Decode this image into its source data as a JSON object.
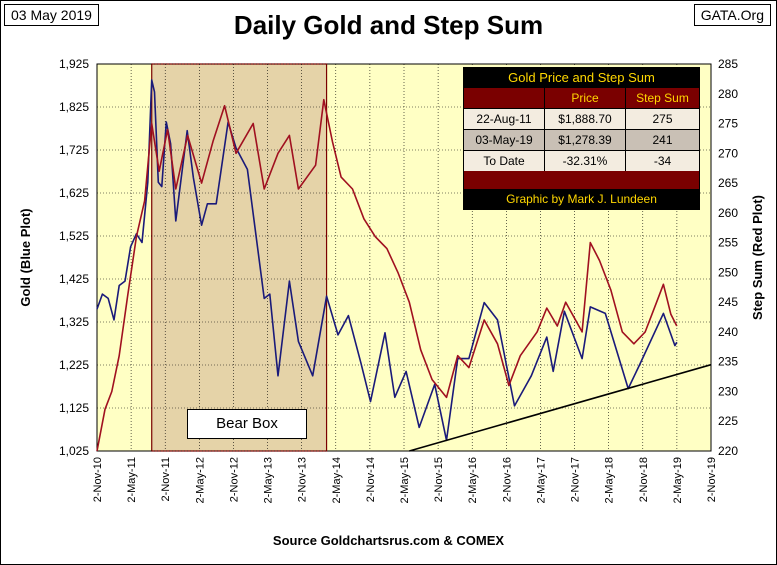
{
  "header": {
    "date": "03 May 2019",
    "title": "Daily Gold and Step Sum",
    "site": "GATA.Org"
  },
  "table": {
    "title": "Gold Price and Step Sum",
    "col_price": "Price",
    "col_step": "Step Sum",
    "rows": [
      {
        "label": "22-Aug-11",
        "price": "$1,888.70",
        "step": "275"
      },
      {
        "label": "03-May-19",
        "price": "$1,278.39",
        "step": "241"
      },
      {
        "label": "To Date",
        "price": "-32.31%",
        "step": "-34"
      }
    ],
    "credit": "Graphic by Mark J. Lundeen"
  },
  "bear_box_label": "Bear Box",
  "source": "Source Goldchartsrus.com & COMEX",
  "colors": {
    "plot_bg": "#ffffc4",
    "bear_box": "#e5d3a8",
    "gold_series": "#1a1a7a",
    "step_series": "#a01020",
    "grid": "#000000"
  },
  "chart_data": {
    "type": "line",
    "xlabel": "",
    "ylabel_left": "Gold   (Blue Plot)",
    "ylabel_right": "Step Sum   (Red Plot)",
    "x_ticks": [
      "2-Nov-10",
      "2-May-11",
      "2-Nov-11",
      "2-May-12",
      "2-Nov-12",
      "2-May-13",
      "2-Nov-13",
      "2-May-14",
      "2-Nov-14",
      "2-May-15",
      "2-Nov-15",
      "2-May-16",
      "2-Nov-16",
      "2-May-17",
      "2-Nov-17",
      "2-May-18",
      "2-Nov-18",
      "2-May-19",
      "2-Nov-19"
    ],
    "y_left_ticks": [
      "1,025",
      "1,125",
      "1,225",
      "1,325",
      "1,425",
      "1,525",
      "1,625",
      "1,725",
      "1,825",
      "1,925"
    ],
    "y_right_ticks": [
      "220",
      "225",
      "230",
      "235",
      "240",
      "245",
      "250",
      "255",
      "260",
      "265",
      "270",
      "275",
      "280",
      "285"
    ],
    "ylim_left": [
      1025,
      1925
    ],
    "ylim_right": [
      220,
      285
    ],
    "grid": true,
    "bear_box": {
      "x_start": "2011-08-22",
      "x_end": "2014-03-15",
      "label": "Bear Box"
    },
    "trend_line": {
      "name": "Step Sum trend",
      "points": [
        {
          "x": "2015-06-01",
          "y": 220
        },
        {
          "x": "2019-11-02",
          "y": 234.5
        }
      ]
    },
    "series": [
      {
        "name": "Gold",
        "axis": "left",
        "points": [
          {
            "x": "2010-11-02",
            "y": 1355
          },
          {
            "x": "2010-12-01",
            "y": 1390
          },
          {
            "x": "2011-01-01",
            "y": 1380
          },
          {
            "x": "2011-02-01",
            "y": 1330
          },
          {
            "x": "2011-03-01",
            "y": 1410
          },
          {
            "x": "2011-04-01",
            "y": 1420
          },
          {
            "x": "2011-05-01",
            "y": 1500
          },
          {
            "x": "2011-06-01",
            "y": 1530
          },
          {
            "x": "2011-07-01",
            "y": 1510
          },
          {
            "x": "2011-08-01",
            "y": 1650
          },
          {
            "x": "2011-08-22",
            "y": 1888
          },
          {
            "x": "2011-09-06",
            "y": 1860
          },
          {
            "x": "2011-09-26",
            "y": 1650
          },
          {
            "x": "2011-10-15",
            "y": 1640
          },
          {
            "x": "2011-11-08",
            "y": 1790
          },
          {
            "x": "2011-12-01",
            "y": 1740
          },
          {
            "x": "2011-12-29",
            "y": 1560
          },
          {
            "x": "2012-02-28",
            "y": 1770
          },
          {
            "x": "2012-04-01",
            "y": 1660
          },
          {
            "x": "2012-05-15",
            "y": 1550
          },
          {
            "x": "2012-06-15",
            "y": 1600
          },
          {
            "x": "2012-08-01",
            "y": 1600
          },
          {
            "x": "2012-10-04",
            "y": 1790
          },
          {
            "x": "2012-11-15",
            "y": 1730
          },
          {
            "x": "2013-01-15",
            "y": 1680
          },
          {
            "x": "2013-02-20",
            "y": 1560
          },
          {
            "x": "2013-04-15",
            "y": 1380
          },
          {
            "x": "2013-05-15",
            "y": 1390
          },
          {
            "x": "2013-06-28",
            "y": 1200
          },
          {
            "x": "2013-08-28",
            "y": 1420
          },
          {
            "x": "2013-10-15",
            "y": 1280
          },
          {
            "x": "2013-12-31",
            "y": 1200
          },
          {
            "x": "2014-03-15",
            "y": 1385
          },
          {
            "x": "2014-05-15",
            "y": 1295
          },
          {
            "x": "2014-07-10",
            "y": 1340
          },
          {
            "x": "2014-09-15",
            "y": 1230
          },
          {
            "x": "2014-11-05",
            "y": 1140
          },
          {
            "x": "2015-01-22",
            "y": 1300
          },
          {
            "x": "2015-03-15",
            "y": 1150
          },
          {
            "x": "2015-05-15",
            "y": 1210
          },
          {
            "x": "2015-07-24",
            "y": 1080
          },
          {
            "x": "2015-10-15",
            "y": 1180
          },
          {
            "x": "2015-12-17",
            "y": 1050
          },
          {
            "x": "2016-02-15",
            "y": 1240
          },
          {
            "x": "2016-04-15",
            "y": 1240
          },
          {
            "x": "2016-07-06",
            "y": 1370
          },
          {
            "x": "2016-09-15",
            "y": 1330
          },
          {
            "x": "2016-12-15",
            "y": 1130
          },
          {
            "x": "2017-03-15",
            "y": 1200
          },
          {
            "x": "2017-06-06",
            "y": 1290
          },
          {
            "x": "2017-07-10",
            "y": 1210
          },
          {
            "x": "2017-09-08",
            "y": 1350
          },
          {
            "x": "2017-12-12",
            "y": 1240
          },
          {
            "x": "2018-01-25",
            "y": 1360
          },
          {
            "x": "2018-04-15",
            "y": 1345
          },
          {
            "x": "2018-08-16",
            "y": 1170
          },
          {
            "x": "2018-10-15",
            "y": 1225
          },
          {
            "x": "2019-02-20",
            "y": 1345
          },
          {
            "x": "2019-04-23",
            "y": 1270
          },
          {
            "x": "2019-05-03",
            "y": 1278
          }
        ]
      },
      {
        "name": "Step Sum",
        "axis": "right",
        "points": [
          {
            "x": "2010-11-02",
            "y": 220
          },
          {
            "x": "2010-12-15",
            "y": 227
          },
          {
            "x": "2011-01-20",
            "y": 230
          },
          {
            "x": "2011-03-01",
            "y": 236
          },
          {
            "x": "2011-04-15",
            "y": 246
          },
          {
            "x": "2011-06-01",
            "y": 256
          },
          {
            "x": "2011-07-15",
            "y": 262
          },
          {
            "x": "2011-08-22",
            "y": 275
          },
          {
            "x": "2011-10-01",
            "y": 267
          },
          {
            "x": "2011-11-15",
            "y": 274
          },
          {
            "x": "2011-12-29",
            "y": 264
          },
          {
            "x": "2012-03-01",
            "y": 273
          },
          {
            "x": "2012-05-15",
            "y": 265
          },
          {
            "x": "2012-07-15",
            "y": 272
          },
          {
            "x": "2012-09-15",
            "y": 278
          },
          {
            "x": "2012-11-15",
            "y": 270
          },
          {
            "x": "2013-02-15",
            "y": 275
          },
          {
            "x": "2013-04-15",
            "y": 264
          },
          {
            "x": "2013-06-28",
            "y": 270
          },
          {
            "x": "2013-08-28",
            "y": 273
          },
          {
            "x": "2013-10-15",
            "y": 264
          },
          {
            "x": "2014-01-15",
            "y": 268
          },
          {
            "x": "2014-02-28",
            "y": 279
          },
          {
            "x": "2014-04-15",
            "y": 272
          },
          {
            "x": "2014-06-01",
            "y": 266
          },
          {
            "x": "2014-08-01",
            "y": 264
          },
          {
            "x": "2014-10-01",
            "y": 259
          },
          {
            "x": "2014-12-01",
            "y": 256
          },
          {
            "x": "2015-02-01",
            "y": 254
          },
          {
            "x": "2015-04-01",
            "y": 250
          },
          {
            "x": "2015-06-01",
            "y": 245
          },
          {
            "x": "2015-08-01",
            "y": 237
          },
          {
            "x": "2015-10-01",
            "y": 232
          },
          {
            "x": "2015-12-17",
            "y": 229
          },
          {
            "x": "2016-02-15",
            "y": 236
          },
          {
            "x": "2016-04-15",
            "y": 234
          },
          {
            "x": "2016-07-06",
            "y": 242
          },
          {
            "x": "2016-09-15",
            "y": 238
          },
          {
            "x": "2016-11-15",
            "y": 231
          },
          {
            "x": "2017-01-15",
            "y": 236
          },
          {
            "x": "2017-04-15",
            "y": 240
          },
          {
            "x": "2017-06-06",
            "y": 244
          },
          {
            "x": "2017-08-01",
            "y": 241
          },
          {
            "x": "2017-09-15",
            "y": 245
          },
          {
            "x": "2017-12-12",
            "y": 240
          },
          {
            "x": "2018-01-25",
            "y": 255
          },
          {
            "x": "2018-03-15",
            "y": 252
          },
          {
            "x": "2018-05-15",
            "y": 247
          },
          {
            "x": "2018-07-15",
            "y": 240
          },
          {
            "x": "2018-09-15",
            "y": 238
          },
          {
            "x": "2018-11-15",
            "y": 240
          },
          {
            "x": "2019-01-15",
            "y": 245
          },
          {
            "x": "2019-02-20",
            "y": 248
          },
          {
            "x": "2019-04-01",
            "y": 243
          },
          {
            "x": "2019-05-03",
            "y": 241
          }
        ]
      }
    ]
  }
}
